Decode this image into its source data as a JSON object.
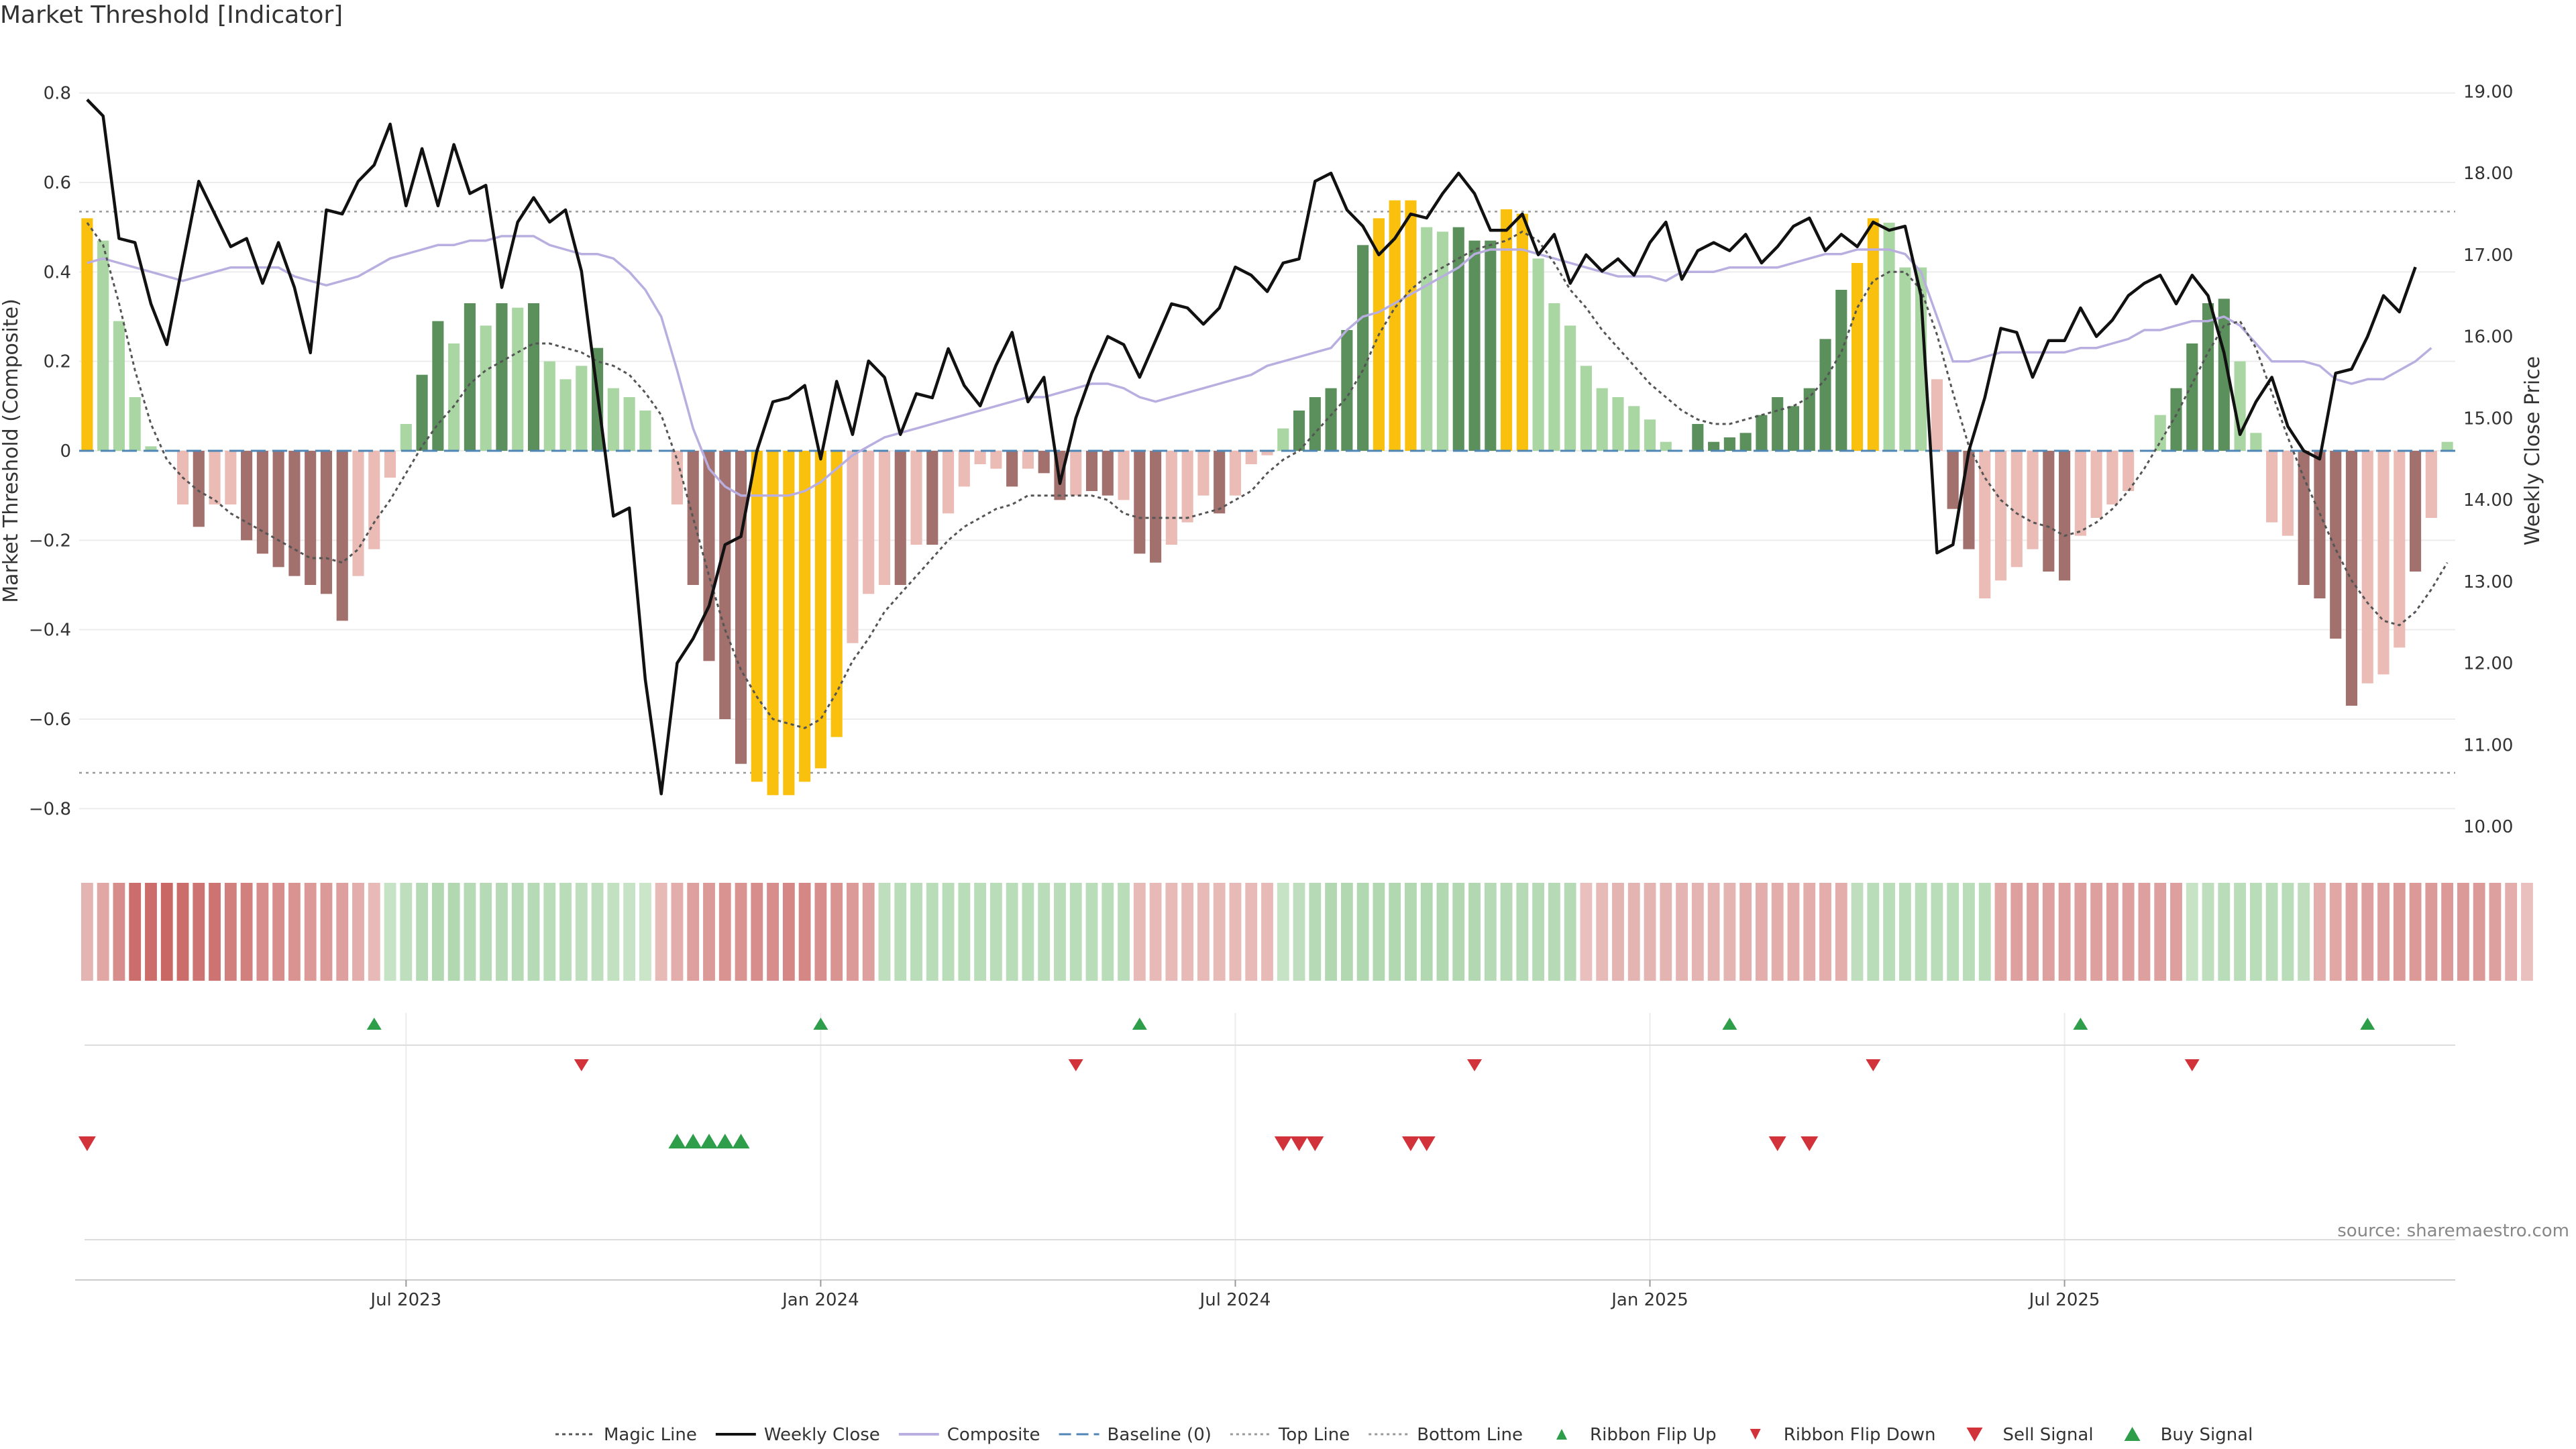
{
  "title": "Market Threshold [Indicator]",
  "source": "source: sharemaestro.com",
  "colors": {
    "yellow": "#f9c10d",
    "dark_green": "#5b8f5b",
    "light_green": "#a9d6a2",
    "dark_red": "#a2706d",
    "light_red": "#ebbcb6",
    "close": "#111111",
    "composite": "#b9aee0",
    "baseline": "#4f86b5",
    "threshold": "#999999",
    "magic": "#555555",
    "up_marker": "#2e9e4a",
    "down_marker": "#d2333b"
  },
  "chart_data": {
    "type": "bar",
    "ylabel_left": "Market Threshold (Composite)",
    "ylabel_right": "Weekly Close Price",
    "ylim_left": [
      -0.84,
      0.84
    ],
    "ylim_right": [
      10.0,
      19.2
    ],
    "yticks_left": [
      "0.8",
      "0.6",
      "0.4",
      "0.2",
      "0",
      "−0.2",
      "−0.4",
      "−0.6",
      "−0.8"
    ],
    "yticks_right": [
      "19.00",
      "18.00",
      "17.00",
      "16.00",
      "15.00",
      "14.00",
      "13.00",
      "12.00",
      "11.00",
      "10.00"
    ],
    "xticks": [
      "Jul 2023",
      "Jan 2024",
      "Jul 2024",
      "Jan 2025",
      "Jul 2025"
    ],
    "xtick_week_index": [
      20.5,
      46.5,
      72.5,
      98.5,
      124.5
    ],
    "top_line": 0.535,
    "bottom_line": -0.72,
    "baseline": 0,
    "grid": true,
    "bars": [
      0.52,
      0.47,
      0.29,
      0.12,
      0.01,
      0,
      -0.12,
      -0.17,
      -0.12,
      -0.12,
      -0.2,
      -0.23,
      -0.26,
      -0.28,
      -0.3,
      -0.32,
      -0.38,
      -0.28,
      -0.22,
      -0.06,
      0.06,
      0.17,
      0.29,
      0.24,
      0.33,
      0.28,
      0.33,
      0.32,
      0.33,
      0.2,
      0.16,
      0.19,
      0.23,
      0.14,
      0.12,
      0.09,
      0,
      -0.12,
      -0.3,
      -0.47,
      -0.6,
      -0.7,
      -0.74,
      -0.77,
      -0.77,
      -0.74,
      -0.71,
      -0.64,
      -0.43,
      -0.32,
      -0.3,
      -0.3,
      -0.21,
      -0.21,
      -0.14,
      -0.08,
      -0.03,
      -0.04,
      -0.08,
      -0.04,
      -0.05,
      -0.11,
      -0.1,
      -0.09,
      -0.1,
      -0.11,
      -0.23,
      -0.25,
      -0.21,
      -0.16,
      -0.1,
      -0.14,
      -0.1,
      -0.03,
      -0.01,
      0.05,
      0.09,
      0.12,
      0.14,
      0.27,
      0.46,
      0.52,
      0.56,
      0.56,
      0.5,
      0.49,
      0.5,
      0.47,
      0.47,
      0.54,
      0.53,
      0.43,
      0.33,
      0.28,
      0.19,
      0.14,
      0.12,
      0.1,
      0.07,
      0.02,
      0,
      0.06,
      0.02,
      0.03,
      0.04,
      0.08,
      0.12,
      0.1,
      0.14,
      0.25,
      0.36,
      0.42,
      0.52,
      0.51,
      0.41,
      0.41,
      0.16,
      -0.13,
      -0.22,
      -0.33,
      -0.29,
      -0.26,
      -0.22,
      -0.27,
      -0.29,
      -0.19,
      -0.15,
      -0.12,
      -0.09,
      0,
      0.08,
      0.14,
      0.24,
      0.33,
      0.34,
      0.2,
      0.04,
      -0.16,
      -0.19,
      -0.3,
      -0.33,
      -0.42,
      -0.57,
      -0.52,
      -0.5,
      -0.44,
      -0.27,
      -0.15,
      0.02
    ],
    "bar_class": [
      "Y",
      "L",
      "L",
      "L",
      "L",
      "L",
      "r",
      "R",
      "r",
      "r",
      "R",
      "R",
      "R",
      "R",
      "R",
      "R",
      "R",
      "r",
      "r",
      "r",
      "L",
      "G",
      "G",
      "L",
      "G",
      "L",
      "G",
      "L",
      "G",
      "L",
      "L",
      "L",
      "G",
      "L",
      "L",
      "L",
      "L",
      "r",
      "R",
      "R",
      "R",
      "R",
      "Y",
      "Y",
      "Y",
      "Y",
      "Y",
      "Y",
      "r",
      "r",
      "r",
      "R",
      "r",
      "R",
      "r",
      "r",
      "r",
      "r",
      "R",
      "r",
      "R",
      "R",
      "r",
      "R",
      "R",
      "r",
      "R",
      "R",
      "r",
      "r",
      "r",
      "R",
      "r",
      "r",
      "r",
      "L",
      "G",
      "G",
      "G",
      "G",
      "G",
      "Y",
      "Y",
      "Y",
      "L",
      "L",
      "G",
      "G",
      "G",
      "Y",
      "Y",
      "L",
      "L",
      "L",
      "L",
      "L",
      "L",
      "L",
      "L",
      "L",
      "L",
      "G",
      "G",
      "G",
      "G",
      "G",
      "G",
      "G",
      "G",
      "G",
      "G",
      "Y",
      "Y",
      "L",
      "L",
      "L",
      "r",
      "R",
      "R",
      "r",
      "r",
      "r",
      "r",
      "R",
      "R",
      "r",
      "r",
      "r",
      "r",
      "L",
      "L",
      "G",
      "G",
      "G",
      "G",
      "L",
      "L",
      "r",
      "r",
      "R",
      "R",
      "R",
      "R",
      "r",
      "r",
      "r",
      "R",
      "r",
      "L"
    ],
    "weekly_close": [
      18.9,
      18.7,
      17.2,
      17.15,
      16.4,
      15.9,
      16.9,
      17.9,
      17.5,
      17.1,
      17.2,
      16.65,
      17.15,
      16.6,
      15.8,
      17.55,
      17.5,
      17.9,
      18.1,
      18.6,
      17.6,
      18.3,
      17.6,
      18.35,
      17.75,
      17.85,
      16.6,
      17.4,
      17.7,
      17.4,
      17.55,
      16.8,
      15.3,
      13.8,
      13.9,
      11.8,
      10.4,
      12.0,
      12.3,
      12.7,
      13.45,
      13.55,
      14.6,
      15.2,
      15.25,
      15.4,
      14.5,
      15.45,
      14.8,
      15.7,
      15.5,
      14.8,
      15.3,
      15.25,
      15.85,
      15.4,
      15.15,
      15.65,
      16.05,
      15.2,
      15.5,
      14.2,
      15.0,
      15.55,
      16.0,
      15.9,
      15.5,
      15.95,
      16.4,
      16.35,
      16.15,
      16.35,
      16.85,
      16.75,
      16.55,
      16.9,
      16.95,
      17.9,
      18.0,
      17.55,
      17.35,
      17.0,
      17.2,
      17.5,
      17.45,
      17.75,
      18.0,
      17.75,
      17.3,
      17.3,
      17.5,
      17.0,
      17.25,
      16.65,
      17.0,
      16.8,
      16.95,
      16.75,
      17.15,
      17.4,
      16.7,
      17.05,
      17.15,
      17.05,
      17.25,
      16.9,
      17.1,
      17.35,
      17.45,
      17.05,
      17.25,
      17.1,
      17.4,
      17.3,
      17.35,
      16.5,
      13.35,
      13.45,
      14.6,
      15.25,
      16.1,
      16.05,
      15.5,
      15.95,
      15.95,
      16.35,
      16.0,
      16.2,
      16.5,
      16.65,
      16.75,
      16.4,
      16.75,
      16.5,
      15.8,
      14.8,
      15.2,
      15.5,
      14.9,
      14.6,
      14.5,
      15.55,
      15.6,
      16.0,
      16.5,
      16.3,
      16.85
    ],
    "composite": [
      0.42,
      0.43,
      0.42,
      0.41,
      0.4,
      0.39,
      0.38,
      0.39,
      0.4,
      0.41,
      0.41,
      0.41,
      0.41,
      0.39,
      0.38,
      0.37,
      0.38,
      0.39,
      0.41,
      0.43,
      0.44,
      0.45,
      0.46,
      0.46,
      0.47,
      0.47,
      0.48,
      0.48,
      0.48,
      0.46,
      0.45,
      0.44,
      0.44,
      0.43,
      0.4,
      0.36,
      0.3,
      0.18,
      0.05,
      -0.04,
      -0.08,
      -0.1,
      -0.1,
      -0.1,
      -0.1,
      -0.09,
      -0.07,
      -0.04,
      -0.01,
      0.01,
      0.03,
      0.04,
      0.05,
      0.06,
      0.07,
      0.08,
      0.09,
      0.1,
      0.11,
      0.12,
      0.12,
      0.13,
      0.14,
      0.15,
      0.15,
      0.14,
      0.12,
      0.11,
      0.12,
      0.13,
      0.14,
      0.15,
      0.16,
      0.17,
      0.19,
      0.2,
      0.21,
      0.22,
      0.23,
      0.27,
      0.3,
      0.31,
      0.33,
      0.35,
      0.37,
      0.39,
      0.41,
      0.44,
      0.45,
      0.45,
      0.45,
      0.44,
      0.43,
      0.42,
      0.41,
      0.4,
      0.39,
      0.39,
      0.39,
      0.38,
      0.4,
      0.4,
      0.4,
      0.41,
      0.41,
      0.41,
      0.41,
      0.42,
      0.43,
      0.44,
      0.44,
      0.45,
      0.45,
      0.45,
      0.44,
      0.4,
      0.3,
      0.2,
      0.2,
      0.21,
      0.22,
      0.22,
      0.22,
      0.22,
      0.22,
      0.23,
      0.23,
      0.24,
      0.25,
      0.27,
      0.27,
      0.28,
      0.29,
      0.29,
      0.3,
      0.28,
      0.24,
      0.2,
      0.2,
      0.2,
      0.19,
      0.16,
      0.15,
      0.16,
      0.16,
      0.18,
      0.2,
      0.23
    ],
    "magic_line": [
      0.51,
      0.46,
      0.33,
      0.18,
      0.06,
      -0.02,
      -0.06,
      -0.09,
      -0.11,
      -0.14,
      -0.16,
      -0.18,
      -0.2,
      -0.22,
      -0.24,
      -0.24,
      -0.25,
      -0.22,
      -0.16,
      -0.11,
      -0.05,
      0.01,
      0.06,
      0.1,
      0.15,
      0.18,
      0.2,
      0.22,
      0.24,
      0.24,
      0.23,
      0.22,
      0.2,
      0.19,
      0.17,
      0.13,
      0.08,
      -0.02,
      -0.15,
      -0.28,
      -0.4,
      -0.49,
      -0.55,
      -0.6,
      -0.61,
      -0.62,
      -0.6,
      -0.54,
      -0.47,
      -0.42,
      -0.36,
      -0.32,
      -0.28,
      -0.24,
      -0.2,
      -0.17,
      -0.15,
      -0.13,
      -0.12,
      -0.1,
      -0.1,
      -0.1,
      -0.1,
      -0.1,
      -0.11,
      -0.14,
      -0.15,
      -0.15,
      -0.15,
      -0.15,
      -0.14,
      -0.13,
      -0.11,
      -0.09,
      -0.05,
      -0.02,
      0.0,
      0.04,
      0.08,
      0.12,
      0.18,
      0.26,
      0.32,
      0.36,
      0.39,
      0.41,
      0.43,
      0.45,
      0.46,
      0.47,
      0.49,
      0.47,
      0.42,
      0.36,
      0.32,
      0.27,
      0.23,
      0.19,
      0.15,
      0.12,
      0.09,
      0.07,
      0.06,
      0.06,
      0.07,
      0.08,
      0.09,
      0.1,
      0.12,
      0.16,
      0.22,
      0.32,
      0.38,
      0.4,
      0.4,
      0.36,
      0.26,
      0.13,
      0.01,
      -0.06,
      -0.11,
      -0.14,
      -0.16,
      -0.17,
      -0.19,
      -0.18,
      -0.16,
      -0.13,
      -0.09,
      -0.04,
      0.02,
      0.08,
      0.15,
      0.22,
      0.28,
      0.29,
      0.23,
      0.13,
      0.03,
      -0.06,
      -0.14,
      -0.22,
      -0.29,
      -0.34,
      -0.38,
      -0.39,
      -0.36,
      -0.31,
      -0.25
    ],
    "ribbon": [
      -0.3,
      -0.4,
      -0.6,
      -0.85,
      -0.85,
      -0.9,
      -0.85,
      -0.8,
      -0.8,
      -0.7,
      -0.7,
      -0.6,
      -0.6,
      -0.55,
      -0.5,
      -0.5,
      -0.45,
      -0.35,
      -0.25,
      0.3,
      0.4,
      0.5,
      0.55,
      0.55,
      0.5,
      0.5,
      0.5,
      0.5,
      0.5,
      0.45,
      0.45,
      0.4,
      0.4,
      0.35,
      0.3,
      0.25,
      -0.25,
      -0.35,
      -0.45,
      -0.5,
      -0.55,
      -0.55,
      -0.6,
      -0.6,
      -0.65,
      -0.65,
      -0.6,
      -0.55,
      -0.5,
      -0.45,
      0.4,
      0.45,
      0.45,
      0.45,
      0.45,
      0.45,
      0.45,
      0.45,
      0.45,
      0.45,
      0.45,
      0.45,
      0.45,
      0.45,
      0.45,
      0.45,
      -0.25,
      -0.25,
      -0.25,
      -0.25,
      -0.25,
      -0.25,
      -0.25,
      -0.25,
      -0.25,
      0.3,
      0.4,
      0.5,
      0.55,
      0.55,
      0.55,
      0.55,
      0.55,
      0.55,
      0.55,
      0.55,
      0.55,
      0.55,
      0.5,
      0.5,
      0.5,
      0.5,
      0.5,
      0.5,
      -0.2,
      -0.25,
      -0.3,
      -0.3,
      -0.3,
      -0.3,
      -0.3,
      -0.3,
      -0.3,
      -0.3,
      -0.35,
      -0.35,
      -0.35,
      -0.35,
      -0.35,
      -0.35,
      -0.35,
      0.4,
      0.45,
      0.45,
      0.45,
      0.45,
      0.45,
      0.45,
      0.45,
      0.45,
      -0.4,
      -0.45,
      -0.45,
      -0.45,
      -0.45,
      -0.45,
      -0.45,
      -0.45,
      -0.45,
      -0.45,
      -0.45,
      -0.45,
      0.3,
      0.4,
      0.45,
      0.45,
      0.45,
      0.45,
      0.45,
      0.4,
      -0.35,
      -0.4,
      -0.45,
      -0.45,
      -0.45,
      -0.5,
      -0.5,
      -0.5,
      -0.5,
      -0.5,
      -0.5,
      -0.45,
      -0.35,
      -0.2
    ],
    "ribbon_flip_up_weeks": [
      18,
      46,
      66,
      103,
      125,
      143
    ],
    "ribbon_flip_down_weeks": [
      31,
      62,
      87,
      112,
      132
    ],
    "sell_signal_weeks": [
      0,
      75,
      76,
      77,
      83,
      84,
      106,
      108
    ],
    "buy_signal_weeks": [
      37,
      38,
      39,
      40,
      41
    ]
  },
  "legend": [
    {
      "label": "Magic Line",
      "icon": "dotted-line"
    },
    {
      "label": "Weekly Close",
      "icon": "solid-line"
    },
    {
      "label": "Composite",
      "icon": "solid-line-light"
    },
    {
      "label": "Baseline (0)",
      "icon": "dashed-line"
    },
    {
      "label": "Top Line",
      "icon": "dotted-line-light"
    },
    {
      "label": "Bottom Line",
      "icon": "dotted-line-light"
    },
    {
      "label": "Ribbon Flip Up",
      "icon": "triangle-up-small"
    },
    {
      "label": "Ribbon Flip Down",
      "icon": "triangle-down-small"
    },
    {
      "label": "Sell Signal",
      "icon": "triangle-down"
    },
    {
      "label": "Buy Signal",
      "icon": "triangle-up"
    }
  ]
}
